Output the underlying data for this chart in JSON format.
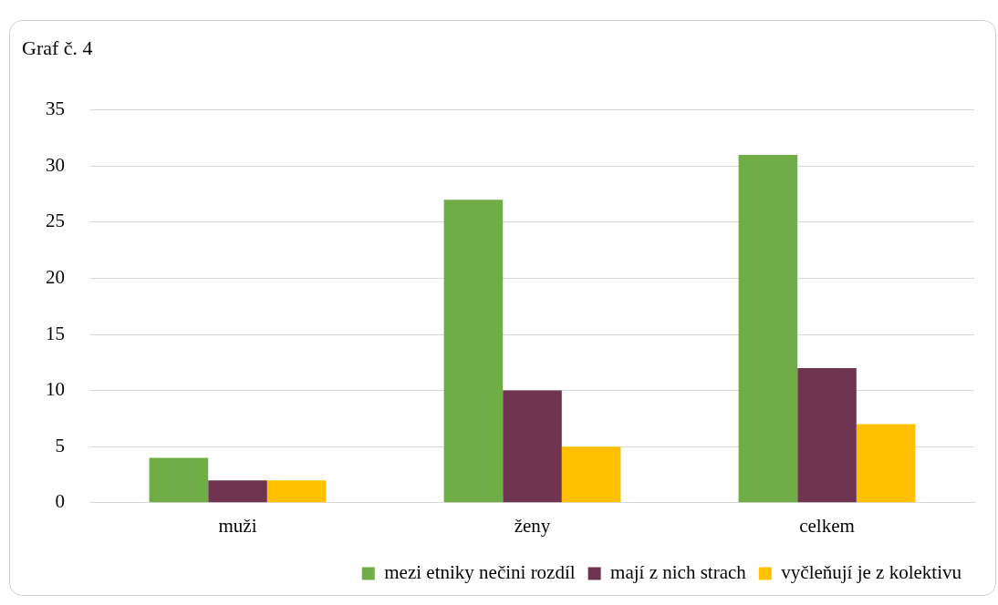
{
  "chart_data": {
    "type": "bar",
    "title": "Graf č. 4",
    "categories": [
      "muži",
      "ženy",
      "celkem"
    ],
    "series": [
      {
        "name": "mezi etniky nečini rozdíl",
        "color": "#70ad47",
        "values": [
          4,
          27,
          31
        ]
      },
      {
        "name": "mají z nich strach",
        "color": "#6f3450",
        "values": [
          2,
          10,
          12
        ]
      },
      {
        "name": "vyčleňují je z kolektivu",
        "color": "#ffc000",
        "values": [
          2,
          5,
          7
        ]
      }
    ],
    "ylim": [
      0,
      35
    ],
    "yticks": [
      0,
      5,
      10,
      15,
      20,
      25,
      30,
      35
    ],
    "grid": "y",
    "legend": "bottom right"
  }
}
